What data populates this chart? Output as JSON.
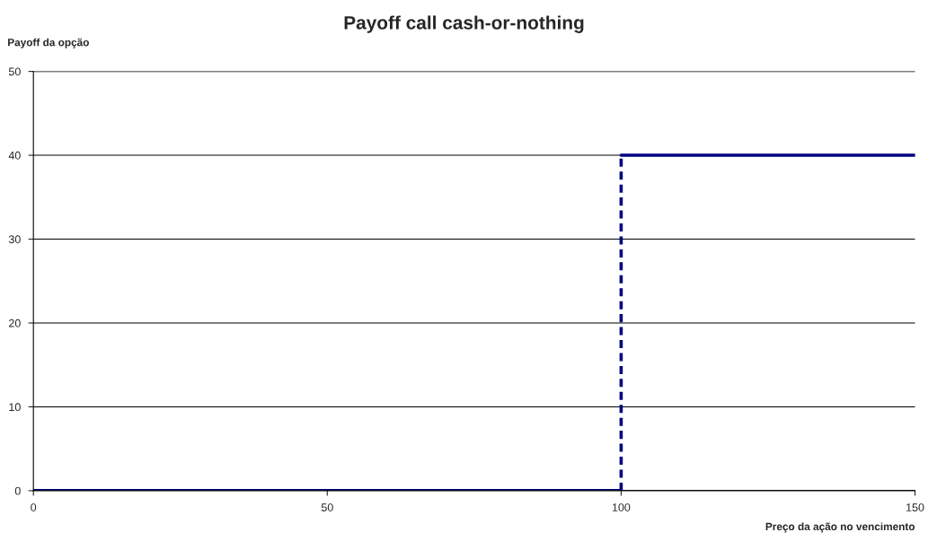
{
  "chart_data": {
    "type": "line",
    "title": "Payoff call cash-or-nothing",
    "xlabel": "Preço da ação no vencimento",
    "ylabel": "Payoff da opção",
    "series": [
      {
        "color": "#000080",
        "x": [
          0,
          100
        ],
        "values": [
          0,
          0
        ],
        "line_style": "solid"
      },
      {
        "color": "#000080",
        "x": [
          100,
          100
        ],
        "values": [
          0,
          40
        ],
        "line_style": "dashed"
      },
      {
        "color": "#000080",
        "x": [
          100,
          150
        ],
        "values": [
          40,
          40
        ],
        "line_style": "solid"
      }
    ],
    "xlim": [
      0,
      150
    ],
    "xticks": [
      0,
      50,
      100,
      150
    ],
    "ylim": [
      0,
      50
    ],
    "yticks": [
      0,
      10,
      20,
      30,
      40,
      50
    ],
    "grid": "y",
    "marker": "none",
    "legend": false
  }
}
